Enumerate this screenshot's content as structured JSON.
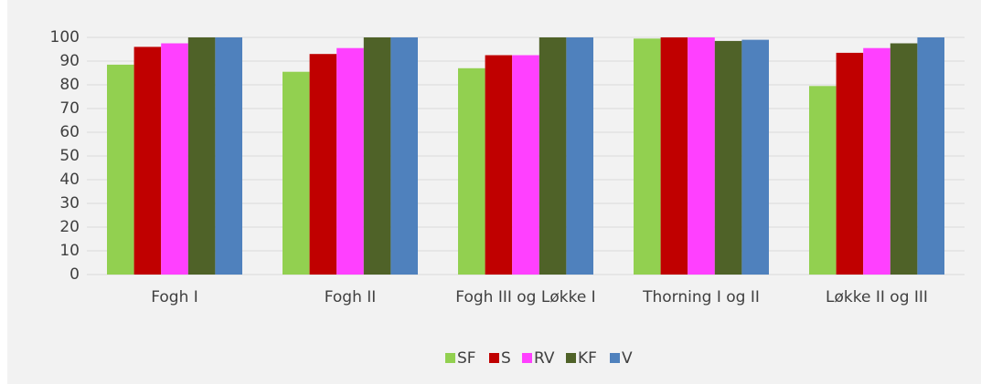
{
  "chart_data": {
    "type": "bar",
    "categories": [
      "Fogh I",
      "Fogh II",
      "Fogh III og Løkke I",
      "Thorning I og II",
      "Løkke II og III"
    ],
    "series": [
      {
        "name": "SF",
        "color": "#92d050",
        "values": [
          88.5,
          85.5,
          87,
          99.5,
          79.5
        ]
      },
      {
        "name": "S",
        "color": "#c00000",
        "values": [
          96,
          93,
          92.5,
          100,
          93.5
        ]
      },
      {
        "name": "RV",
        "color": "#ff40ff",
        "values": [
          97.5,
          95.5,
          92.5,
          100,
          95.5
        ]
      },
      {
        "name": "KF",
        "color": "#4f6228",
        "values": [
          100,
          100,
          100,
          98.5,
          97.5
        ]
      },
      {
        "name": "V",
        "color": "#4f81bd",
        "values": [
          100,
          100,
          100,
          99,
          100
        ]
      }
    ],
    "ylim": [
      0,
      100
    ],
    "yticks": [
      0,
      10,
      20,
      30,
      40,
      50,
      60,
      70,
      80,
      90,
      100
    ],
    "grid": true,
    "legend": "bottom"
  }
}
